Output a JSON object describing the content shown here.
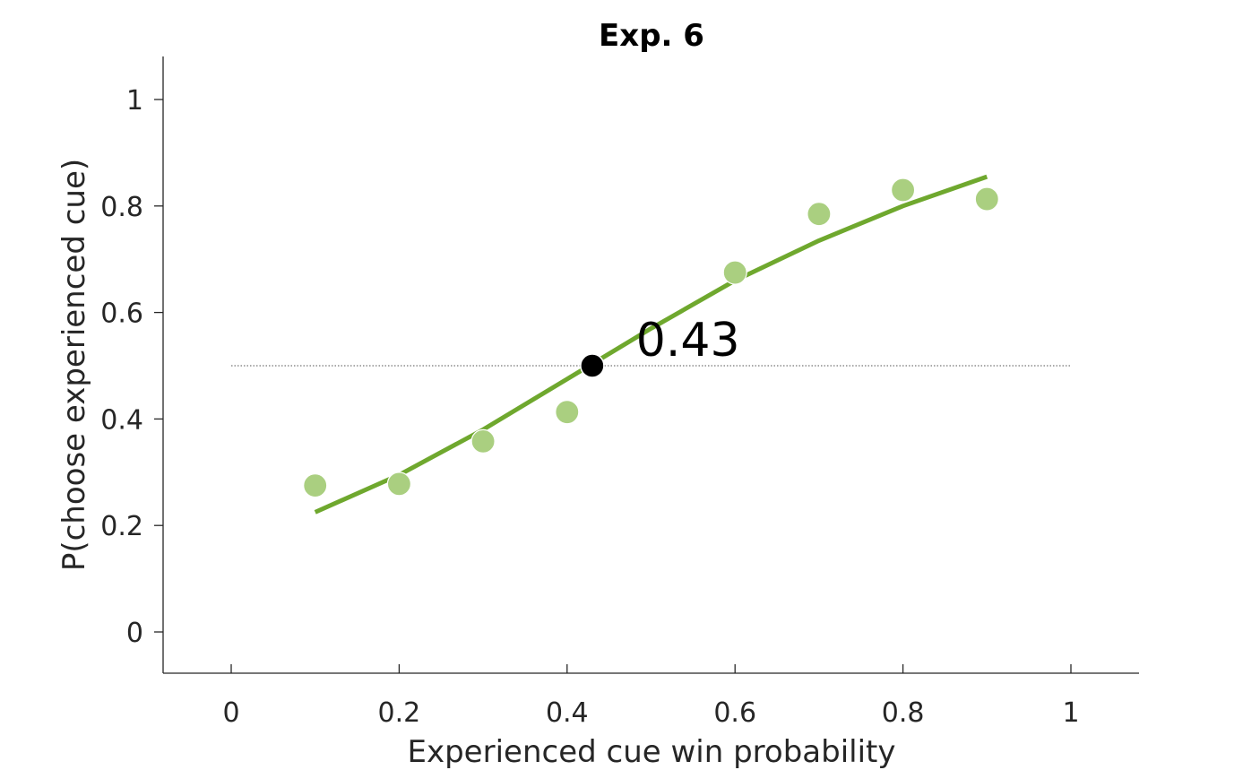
{
  "chart_data": {
    "type": "scatter",
    "title": "Exp. 6",
    "xlabel": "Experienced cue win probability",
    "ylabel": "P(choose experienced cue)",
    "xlim": [
      -0.08,
      1.08
    ],
    "ylim": [
      -0.08,
      1.08
    ],
    "xticks": [
      0,
      0.2,
      0.4,
      0.6,
      0.8,
      1
    ],
    "xtick_labels": [
      "0",
      "0.2",
      "0.4",
      "0.6",
      "0.8",
      "1"
    ],
    "yticks": [
      0,
      0.2,
      0.4,
      0.6,
      0.8,
      1
    ],
    "ytick_labels": [
      "0",
      "0.2",
      "0.4",
      "0.6",
      "0.8",
      "1"
    ],
    "grid": false,
    "colors": {
      "points": "#aacf80",
      "fit": "#6fa82e",
      "marker": "#000000",
      "reference": "#555555"
    },
    "series": [
      {
        "type": "scatter",
        "x": [
          0.1,
          0.2,
          0.3,
          0.4,
          0.6,
          0.7,
          0.8,
          0.9
        ],
        "y": [
          0.275,
          0.278,
          0.358,
          0.413,
          0.675,
          0.785,
          0.83,
          0.813
        ]
      },
      {
        "type": "line",
        "x": [
          0.1,
          0.2,
          0.3,
          0.4,
          0.5,
          0.6,
          0.7,
          0.8,
          0.9
        ],
        "y": [
          0.225,
          0.295,
          0.38,
          0.475,
          0.57,
          0.66,
          0.735,
          0.8,
          0.855
        ]
      }
    ],
    "reference_line": {
      "y": 0.5,
      "x_range": [
        0,
        1
      ],
      "style": "dotted"
    },
    "threshold_point": {
      "x": 0.43,
      "y": 0.5
    },
    "annotation": {
      "text": "0.43",
      "x": 0.48,
      "y": 0.5
    }
  }
}
